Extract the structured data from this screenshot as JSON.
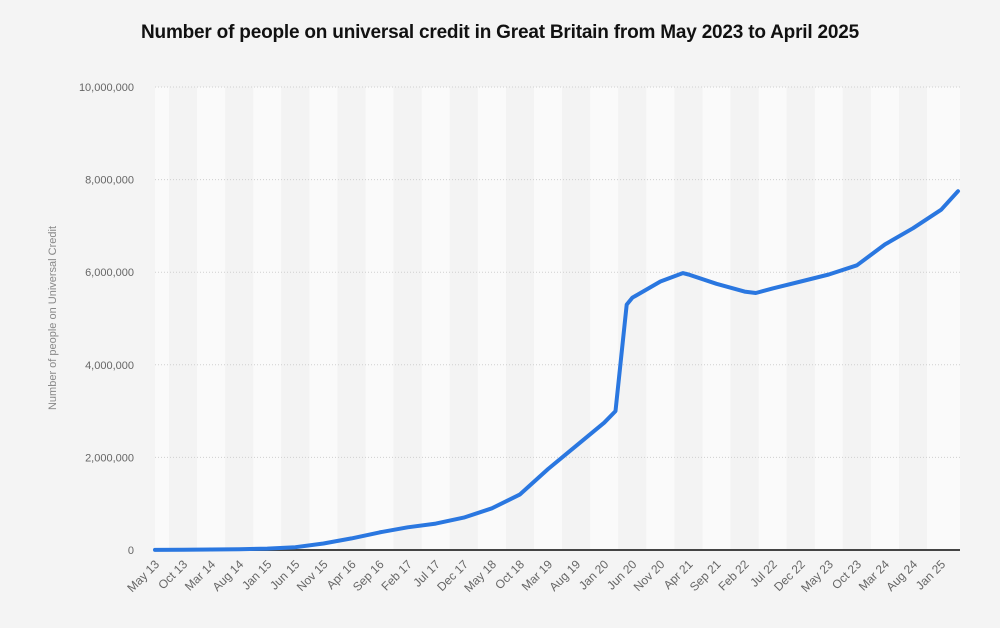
{
  "chart_data": {
    "type": "line",
    "title": "Number of people on universal credit in Great Britain from May 2023 to April 2025",
    "xlabel": "",
    "ylabel": "Number of people on Universal Credit",
    "ylim": [
      0,
      10000000
    ],
    "grid": true,
    "yticks": [
      0,
      2000000,
      4000000,
      6000000,
      8000000,
      10000000
    ],
    "ytick_labels": [
      "0",
      "2,000,000",
      "4,000,000",
      "6,000,000",
      "8,000,000",
      "10,000,000"
    ],
    "xtick_labels": [
      "May 13",
      "Oct 13",
      "Mar 14",
      "Aug 14",
      "Jan 15",
      "Jun 15",
      "Nov 15",
      "Apr 16",
      "Sep 16",
      "Feb 17",
      "Jul 17",
      "Dec 17",
      "May 18",
      "Oct 18",
      "Mar 19",
      "Aug 19",
      "Jan 20",
      "Jun 20",
      "Nov 20",
      "Apr 21",
      "Sep 21",
      "Feb 22",
      "Jul 22",
      "Dec 22",
      "May 23",
      "Oct 23",
      "Mar 24",
      "Aug 24",
      "Jan 25"
    ],
    "color": "#2a77e0",
    "series": [
      {
        "name": "Number of people on Universal Credit",
        "points": [
          [
            "May 13",
            3000
          ],
          [
            "Oct 13",
            6000
          ],
          [
            "Mar 14",
            10000
          ],
          [
            "Aug 14",
            15000
          ],
          [
            "Jan 15",
            30000
          ],
          [
            "Jun 15",
            60000
          ],
          [
            "Nov 15",
            140000
          ],
          [
            "Apr 16",
            250000
          ],
          [
            "Sep 16",
            380000
          ],
          [
            "Feb 17",
            490000
          ],
          [
            "Jul 17",
            570000
          ],
          [
            "Dec 17",
            700000
          ],
          [
            "May 18",
            900000
          ],
          [
            "Oct 18",
            1200000
          ],
          [
            "Mar 19",
            1750000
          ],
          [
            "Aug 19",
            2250000
          ],
          [
            "Jan 20",
            2750000
          ],
          [
            "Mar 20",
            3000000
          ],
          [
            "May 20",
            5300000
          ],
          [
            "Jun 20",
            5450000
          ],
          [
            "Nov 20",
            5800000
          ],
          [
            "Mar 21",
            5980000
          ],
          [
            "Apr 21",
            5950000
          ],
          [
            "Sep 21",
            5750000
          ],
          [
            "Feb 22",
            5580000
          ],
          [
            "Apr 22",
            5550000
          ],
          [
            "Jul 22",
            5650000
          ],
          [
            "Dec 22",
            5800000
          ],
          [
            "May 23",
            5950000
          ],
          [
            "Oct 23",
            6150000
          ],
          [
            "Mar 24",
            6600000
          ],
          [
            "Aug 24",
            6950000
          ],
          [
            "Jan 25",
            7350000
          ],
          [
            "Apr 25",
            7750000
          ]
        ]
      }
    ]
  }
}
